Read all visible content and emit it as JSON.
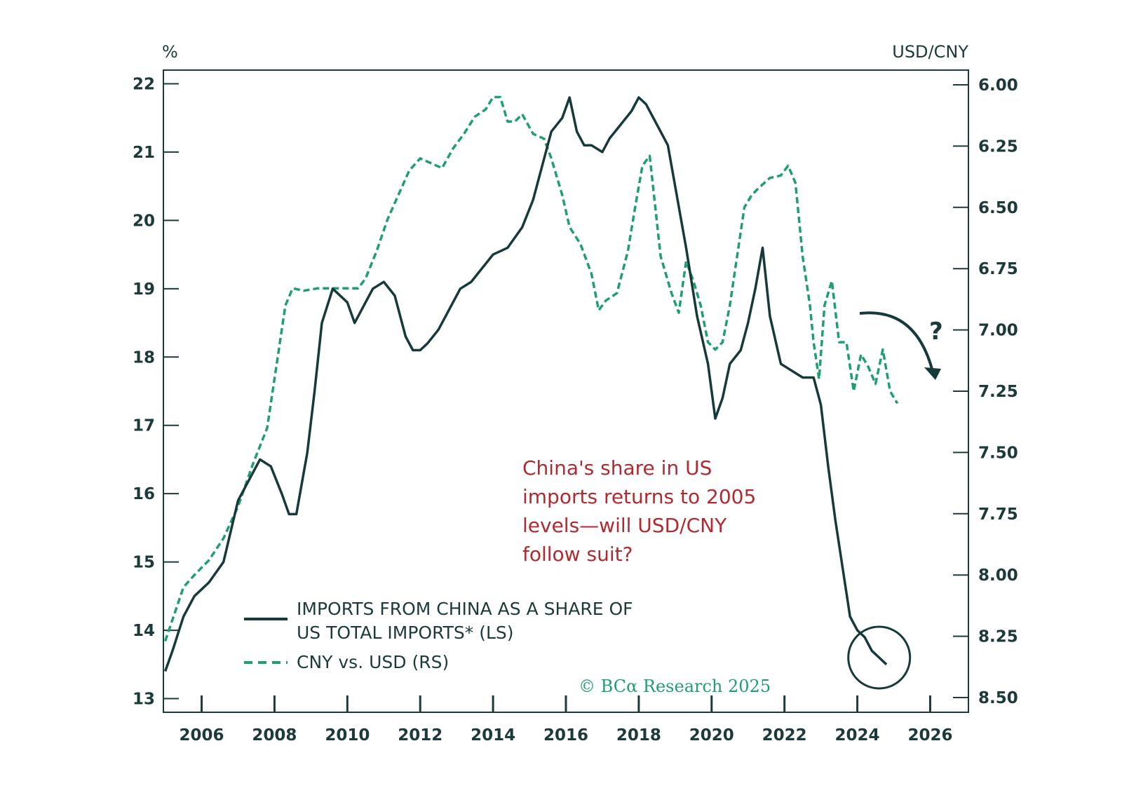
{
  "chart_data": {
    "type": "line",
    "left_axis_unit": "%",
    "right_axis_unit": "USD/CNY",
    "x_ticks": [
      "2006",
      "2008",
      "2010",
      "2012",
      "2014",
      "2016",
      "2018",
      "2020",
      "2022",
      "2024",
      "2026"
    ],
    "xlim": [
      2004.95,
      2027.05
    ],
    "left_ylim": [
      12.8,
      22.2
    ],
    "left_ticks": [
      "13",
      "14",
      "15",
      "16",
      "17",
      "18",
      "19",
      "20",
      "21",
      "22"
    ],
    "right_ylim": [
      8.56,
      5.94
    ],
    "right_ticks": [
      "6.00",
      "6.25",
      "6.50",
      "6.75",
      "7.00",
      "7.25",
      "7.50",
      "7.75",
      "8.00",
      "8.25",
      "8.50"
    ],
    "right_axis_inverted": true,
    "grid": false,
    "series": [
      {
        "name": "IMPORTS FROM CHINA AS A SHARE OF US TOTAL IMPORTS* (LS)",
        "axis": "left",
        "style": "solid",
        "color": "#16393a",
        "x": [
          2005.0,
          2005.2,
          2005.5,
          2005.8,
          2006.2,
          2006.6,
          2007.0,
          2007.3,
          2007.6,
          2007.9,
          2008.2,
          2008.4,
          2008.6,
          2008.9,
          2009.1,
          2009.3,
          2009.6,
          2010.0,
          2010.2,
          2010.4,
          2010.7,
          2011.0,
          2011.3,
          2011.6,
          2011.8,
          2012.0,
          2012.2,
          2012.5,
          2012.8,
          2013.1,
          2013.4,
          2013.7,
          2014.0,
          2014.4,
          2014.8,
          2015.1,
          2015.4,
          2015.6,
          2015.9,
          2016.1,
          2016.3,
          2016.5,
          2016.7,
          2017.0,
          2017.2,
          2017.5,
          2017.8,
          2018.0,
          2018.2,
          2018.5,
          2018.8,
          2019.0,
          2019.3,
          2019.6,
          2019.9,
          2020.1,
          2020.3,
          2020.5,
          2020.8,
          2021.0,
          2021.2,
          2021.4,
          2021.6,
          2021.9,
          2022.2,
          2022.5,
          2022.8,
          2023.0,
          2023.2,
          2023.4,
          2023.6,
          2023.8,
          2024.0,
          2024.2,
          2024.4,
          2024.6,
          2024.8
        ],
        "y": [
          13.4,
          13.7,
          14.2,
          14.5,
          14.7,
          15.0,
          15.9,
          16.2,
          16.5,
          16.4,
          16.0,
          15.7,
          15.7,
          16.6,
          17.5,
          18.5,
          19.0,
          18.8,
          18.5,
          18.7,
          19.0,
          19.1,
          18.9,
          18.3,
          18.1,
          18.1,
          18.2,
          18.4,
          18.7,
          19.0,
          19.1,
          19.3,
          19.5,
          19.6,
          19.9,
          20.3,
          20.9,
          21.3,
          21.5,
          21.8,
          21.3,
          21.1,
          21.1,
          21.0,
          21.2,
          21.4,
          21.6,
          21.8,
          21.7,
          21.4,
          21.1,
          20.5,
          19.6,
          18.6,
          17.9,
          17.1,
          17.4,
          17.9,
          18.1,
          18.5,
          19.0,
          19.6,
          18.6,
          17.9,
          17.8,
          17.7,
          17.7,
          17.3,
          16.4,
          15.6,
          14.9,
          14.2,
          14.0,
          13.9,
          13.7,
          13.6,
          13.5
        ]
      },
      {
        "name": "CNY vs. USD (RS)",
        "axis": "right",
        "style": "dashed",
        "color": "#1f9e72",
        "x": [
          2005.0,
          2005.5,
          2005.8,
          2006.2,
          2006.6,
          2007.0,
          2007.4,
          2007.8,
          2008.1,
          2008.3,
          2008.5,
          2008.8,
          2009.2,
          2009.6,
          2010.0,
          2010.3,
          2010.5,
          2010.8,
          2011.1,
          2011.4,
          2011.7,
          2012.0,
          2012.3,
          2012.6,
          2012.9,
          2013.2,
          2013.5,
          2013.8,
          2014.0,
          2014.2,
          2014.4,
          2014.6,
          2014.8,
          2015.1,
          2015.4,
          2015.6,
          2015.9,
          2016.1,
          2016.4,
          2016.7,
          2016.9,
          2017.1,
          2017.4,
          2017.7,
          2017.9,
          2018.1,
          2018.3,
          2018.6,
          2018.9,
          2019.1,
          2019.3,
          2019.5,
          2019.7,
          2019.9,
          2020.1,
          2020.3,
          2020.5,
          2020.7,
          2020.9,
          2021.1,
          2021.3,
          2021.6,
          2021.9,
          2022.1,
          2022.3,
          2022.5,
          2022.7,
          2022.8,
          2022.95,
          2023.1,
          2023.3,
          2023.5,
          2023.7,
          2023.9,
          2024.1,
          2024.3,
          2024.5,
          2024.7,
          2024.9,
          2025.1
        ],
        "y": [
          8.27,
          8.05,
          8.0,
          7.94,
          7.85,
          7.72,
          7.55,
          7.4,
          7.1,
          6.9,
          6.83,
          6.84,
          6.83,
          6.83,
          6.83,
          6.83,
          6.79,
          6.68,
          6.55,
          6.45,
          6.35,
          6.3,
          6.32,
          6.34,
          6.26,
          6.2,
          6.13,
          6.1,
          6.05,
          6.05,
          6.15,
          6.15,
          6.12,
          6.2,
          6.22,
          6.3,
          6.45,
          6.58,
          6.65,
          6.77,
          6.92,
          6.88,
          6.85,
          6.68,
          6.5,
          6.33,
          6.29,
          6.7,
          6.85,
          6.93,
          6.72,
          6.8,
          6.9,
          7.05,
          7.08,
          7.05,
          6.9,
          6.7,
          6.5,
          6.45,
          6.42,
          6.38,
          6.37,
          6.33,
          6.4,
          6.7,
          6.9,
          7.05,
          7.2,
          6.9,
          6.8,
          7.05,
          7.05,
          7.25,
          7.1,
          7.15,
          7.22,
          7.08,
          7.25,
          7.3
        ]
      }
    ],
    "annotation": "China's share in US imports returns to 2005 levels—will USD/CNY follow suit?",
    "annotation_color": "#b02a30",
    "question_mark": "?",
    "credit": "© BCα Research 2025",
    "credit_color": "#1f9e72",
    "legend_position": "bottom-left",
    "axis_color": "#1c3a3a"
  }
}
